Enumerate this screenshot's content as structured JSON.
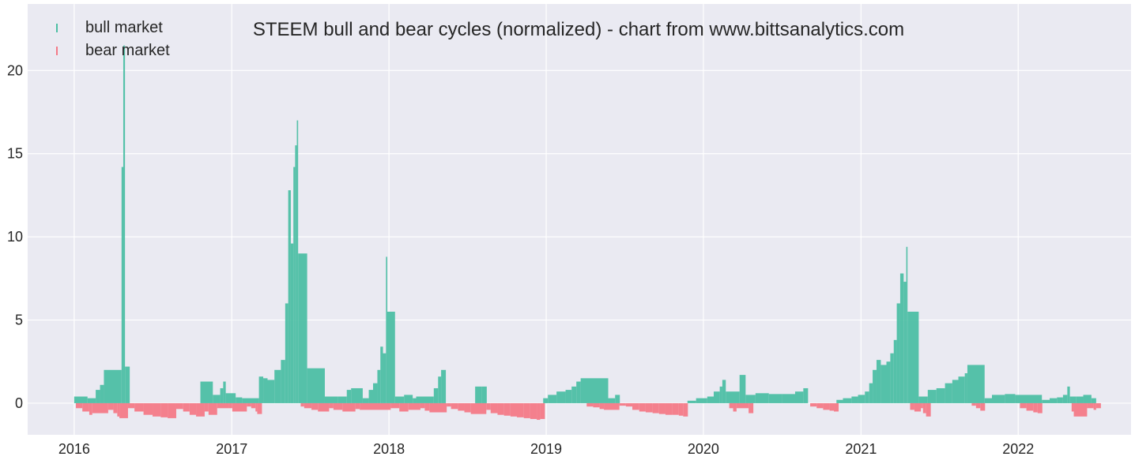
{
  "chart_data": {
    "type": "bar",
    "title": "STEEM bull and bear cycles (normalized)  - chart from www.bittsanalytics.com",
    "xlabel": "",
    "ylabel": "",
    "x_ticks": [
      "2016",
      "2017",
      "2018",
      "2019",
      "2020",
      "2021",
      "2022"
    ],
    "y_ticks": [
      "0",
      "5",
      "10",
      "15",
      "20"
    ],
    "xlim": [
      "2015-09-15",
      "2022-09-20"
    ],
    "ylim": [
      -1.9,
      24.0
    ],
    "grid": true,
    "legend_position": "top-left",
    "colors": {
      "bull": "#4dbfa4",
      "bear": "#f47a87",
      "background": "#eaeaf2",
      "grid": "#ffffff"
    },
    "series": [
      {
        "name": "bull market",
        "points": [
          [
            "2016-01-01",
            0.4
          ],
          [
            "2016-02-01",
            0.3
          ],
          [
            "2016-02-20",
            0.8
          ],
          [
            "2016-03-01",
            1.1
          ],
          [
            "2016-03-10",
            2.0
          ],
          [
            "2016-04-20",
            14.2
          ],
          [
            "2016-04-24",
            21.5
          ],
          [
            "2016-04-28",
            2.2
          ],
          [
            "2016-10-20",
            1.3
          ],
          [
            "2016-11-18",
            0.5
          ],
          [
            "2016-12-05",
            0.9
          ],
          [
            "2016-12-12",
            1.3
          ],
          [
            "2016-12-18",
            0.6
          ],
          [
            "2017-01-10",
            0.35
          ],
          [
            "2017-01-25",
            0.3
          ],
          [
            "2017-03-05",
            1.6
          ],
          [
            "2017-03-15",
            1.5
          ],
          [
            "2017-03-25",
            1.4
          ],
          [
            "2017-04-10",
            2.0
          ],
          [
            "2017-04-25",
            2.6
          ],
          [
            "2017-05-05",
            6.0
          ],
          [
            "2017-05-12",
            12.8
          ],
          [
            "2017-05-18",
            9.6
          ],
          [
            "2017-05-24",
            14.2
          ],
          [
            "2017-05-28",
            15.5
          ],
          [
            "2017-06-01",
            17.0
          ],
          [
            "2017-06-04",
            9.0
          ],
          [
            "2017-06-25",
            2.1
          ],
          [
            "2017-08-05",
            0.4
          ],
          [
            "2017-09-05",
            0.4
          ],
          [
            "2017-09-25",
            0.8
          ],
          [
            "2017-10-05",
            0.9
          ],
          [
            "2017-11-01",
            0.3
          ],
          [
            "2017-11-15",
            0.8
          ],
          [
            "2017-11-25",
            1.2
          ],
          [
            "2017-12-05",
            2.0
          ],
          [
            "2017-12-12",
            3.4
          ],
          [
            "2017-12-18",
            3.0
          ],
          [
            "2017-12-25",
            8.8
          ],
          [
            "2017-12-28",
            5.5
          ],
          [
            "2018-01-15",
            0.4
          ],
          [
            "2018-02-05",
            0.5
          ],
          [
            "2018-02-25",
            0.3
          ],
          [
            "2018-03-05",
            0.4
          ],
          [
            "2018-04-15",
            0.9
          ],
          [
            "2018-04-25",
            1.6
          ],
          [
            "2018-05-02",
            2.0
          ],
          [
            "2018-07-20",
            1.0
          ],
          [
            "2018-08-05",
            1.0
          ],
          [
            "2018-12-25",
            0.3
          ],
          [
            "2019-01-05",
            0.5
          ],
          [
            "2019-01-25",
            0.7
          ],
          [
            "2019-02-15",
            0.8
          ],
          [
            "2019-03-01",
            1.0
          ],
          [
            "2019-03-12",
            1.3
          ],
          [
            "2019-03-22",
            1.5
          ],
          [
            "2019-05-25",
            0.3
          ],
          [
            "2019-06-10",
            0.5
          ],
          [
            "2019-11-25",
            0.15
          ],
          [
            "2019-12-15",
            0.3
          ],
          [
            "2020-01-10",
            0.4
          ],
          [
            "2020-01-25",
            0.7
          ],
          [
            "2020-02-08",
            1.0
          ],
          [
            "2020-02-14",
            1.4
          ],
          [
            "2020-02-22",
            0.7
          ],
          [
            "2020-03-25",
            1.7
          ],
          [
            "2020-04-08",
            0.5
          ],
          [
            "2020-05-01",
            0.6
          ],
          [
            "2020-06-01",
            0.55
          ],
          [
            "2020-07-01",
            0.55
          ],
          [
            "2020-08-01",
            0.7
          ],
          [
            "2020-08-20",
            0.9
          ],
          [
            "2020-11-05",
            0.2
          ],
          [
            "2020-11-20",
            0.3
          ],
          [
            "2020-12-10",
            0.4
          ],
          [
            "2020-12-25",
            0.5
          ],
          [
            "2021-01-10",
            0.7
          ],
          [
            "2021-01-20",
            1.2
          ],
          [
            "2021-01-28",
            2.0
          ],
          [
            "2021-02-06",
            2.6
          ],
          [
            "2021-02-16",
            2.3
          ],
          [
            "2021-03-01",
            2.5
          ],
          [
            "2021-03-10",
            3.0
          ],
          [
            "2021-03-18",
            3.8
          ],
          [
            "2021-03-25",
            6.0
          ],
          [
            "2021-04-02",
            7.8
          ],
          [
            "2021-04-10",
            7.3
          ],
          [
            "2021-04-16",
            9.4
          ],
          [
            "2021-04-19",
            5.5
          ],
          [
            "2021-05-15",
            0.4
          ],
          [
            "2021-06-05",
            0.8
          ],
          [
            "2021-06-25",
            0.9
          ],
          [
            "2021-07-15",
            1.2
          ],
          [
            "2021-08-01",
            1.4
          ],
          [
            "2021-08-15",
            1.6
          ],
          [
            "2021-08-30",
            1.8
          ],
          [
            "2021-09-05",
            2.3
          ],
          [
            "2021-10-15",
            0.3
          ],
          [
            "2021-11-01",
            0.5
          ],
          [
            "2021-12-01",
            0.55
          ],
          [
            "2021-12-25",
            0.5
          ],
          [
            "2022-02-25",
            0.2
          ],
          [
            "2022-03-15",
            0.3
          ],
          [
            "2022-04-01",
            0.35
          ],
          [
            "2022-04-15",
            0.5
          ],
          [
            "2022-04-25",
            1.0
          ],
          [
            "2022-05-01",
            0.4
          ],
          [
            "2022-05-15",
            0.4
          ],
          [
            "2022-06-01",
            0.5
          ],
          [
            "2022-06-20",
            0.3
          ]
        ]
      },
      {
        "name": "bear market",
        "points": [
          [
            "2016-01-05",
            -0.3
          ],
          [
            "2016-01-20",
            -0.5
          ],
          [
            "2016-02-05",
            -0.7
          ],
          [
            "2016-02-12",
            -0.6
          ],
          [
            "2016-03-20",
            -0.4
          ],
          [
            "2016-04-01",
            -0.6
          ],
          [
            "2016-04-10",
            -0.8
          ],
          [
            "2016-04-15",
            -0.9
          ],
          [
            "2016-05-05",
            -0.3
          ],
          [
            "2016-05-20",
            -0.5
          ],
          [
            "2016-06-10",
            -0.7
          ],
          [
            "2016-07-01",
            -0.8
          ],
          [
            "2016-07-20",
            -0.85
          ],
          [
            "2016-08-05",
            -0.9
          ],
          [
            "2016-08-25",
            -0.35
          ],
          [
            "2016-09-10",
            -0.5
          ],
          [
            "2016-09-25",
            -0.7
          ],
          [
            "2016-10-10",
            -0.8
          ],
          [
            "2016-10-30",
            -0.5
          ],
          [
            "2016-11-08",
            -0.7
          ],
          [
            "2016-11-28",
            -0.3
          ],
          [
            "2016-12-25",
            -0.3
          ],
          [
            "2017-01-02",
            -0.5
          ],
          [
            "2017-02-05",
            -0.2
          ],
          [
            "2017-02-15",
            -0.3
          ],
          [
            "2017-02-25",
            -0.5
          ],
          [
            "2017-03-01",
            -0.65
          ],
          [
            "2017-06-10",
            -0.2
          ],
          [
            "2017-06-18",
            -0.3
          ],
          [
            "2017-07-05",
            -0.4
          ],
          [
            "2017-07-20",
            -0.5
          ],
          [
            "2017-08-15",
            -0.3
          ],
          [
            "2017-08-25",
            -0.4
          ],
          [
            "2017-09-15",
            -0.5
          ],
          [
            "2017-10-15",
            -0.35
          ],
          [
            "2017-10-25",
            -0.4
          ],
          [
            "2018-01-05",
            -0.3
          ],
          [
            "2018-01-25",
            -0.5
          ],
          [
            "2018-02-15",
            -0.4
          ],
          [
            "2018-03-15",
            -0.3
          ],
          [
            "2018-03-25",
            -0.45
          ],
          [
            "2018-04-05",
            -0.55
          ],
          [
            "2018-05-15",
            -0.2
          ],
          [
            "2018-05-25",
            -0.35
          ],
          [
            "2018-06-10",
            -0.45
          ],
          [
            "2018-06-25",
            -0.55
          ],
          [
            "2018-07-10",
            -0.65
          ],
          [
            "2018-08-15",
            -0.4
          ],
          [
            "2018-08-25",
            -0.6
          ],
          [
            "2018-09-10",
            -0.7
          ],
          [
            "2018-09-25",
            -0.75
          ],
          [
            "2018-10-10",
            -0.8
          ],
          [
            "2018-10-25",
            -0.85
          ],
          [
            "2018-11-10",
            -0.9
          ],
          [
            "2018-11-25",
            -0.95
          ],
          [
            "2018-12-10",
            -1.0
          ],
          [
            "2018-12-18",
            -0.95
          ],
          [
            "2019-04-05",
            -0.2
          ],
          [
            "2019-04-20",
            -0.25
          ],
          [
            "2019-05-05",
            -0.35
          ],
          [
            "2019-05-15",
            -0.4
          ],
          [
            "2019-06-20",
            -0.15
          ],
          [
            "2019-07-05",
            -0.2
          ],
          [
            "2019-07-20",
            -0.4
          ],
          [
            "2019-08-05",
            -0.5
          ],
          [
            "2019-08-20",
            -0.55
          ],
          [
            "2019-09-05",
            -0.6
          ],
          [
            "2019-09-20",
            -0.65
          ],
          [
            "2019-10-05",
            -0.7
          ],
          [
            "2019-10-20",
            -0.7
          ],
          [
            "2019-11-05",
            -0.75
          ],
          [
            "2019-11-15",
            -0.8
          ],
          [
            "2020-03-01",
            -0.3
          ],
          [
            "2020-03-10",
            -0.5
          ],
          [
            "2020-03-18",
            -0.3
          ],
          [
            "2020-04-15",
            -0.6
          ],
          [
            "2020-09-05",
            -0.2
          ],
          [
            "2020-09-20",
            -0.3
          ],
          [
            "2020-10-05",
            -0.4
          ],
          [
            "2020-10-20",
            -0.45
          ],
          [
            "2020-10-30",
            -0.5
          ],
          [
            "2021-04-25",
            -0.4
          ],
          [
            "2021-05-05",
            -0.5
          ],
          [
            "2021-05-20",
            -0.3
          ],
          [
            "2021-05-25",
            -0.6
          ],
          [
            "2021-06-01",
            -0.8
          ],
          [
            "2021-09-15",
            -0.15
          ],
          [
            "2021-09-25",
            -0.3
          ],
          [
            "2021-10-05",
            -0.45
          ],
          [
            "2022-01-05",
            -0.3
          ],
          [
            "2022-01-20",
            -0.45
          ],
          [
            "2022-02-05",
            -0.55
          ],
          [
            "2022-02-15",
            -0.6
          ],
          [
            "2022-05-05",
            -0.5
          ],
          [
            "2022-05-10",
            -0.8
          ],
          [
            "2022-06-10",
            -0.3
          ],
          [
            "2022-06-25",
            -0.4
          ],
          [
            "2022-07-01",
            -0.3
          ]
        ]
      }
    ]
  }
}
